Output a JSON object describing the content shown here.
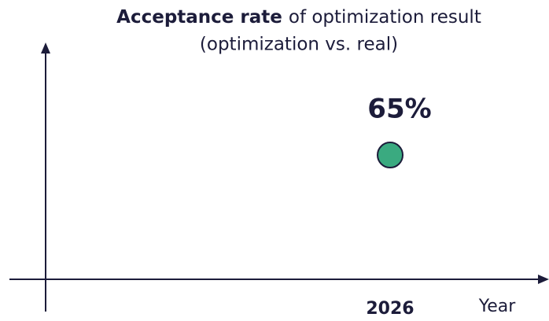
{
  "chart_data": {
    "type": "scatter",
    "title_bold": "Acceptance rate",
    "title_rest": "of optimization result",
    "subtitle": "(optimization vs. real)",
    "x_label": "Year",
    "categories": [
      "2026"
    ],
    "values": [
      65
    ],
    "value_labels": [
      "65%"
    ],
    "color": "#3aaa80",
    "ylim": [
      0,
      100
    ]
  }
}
